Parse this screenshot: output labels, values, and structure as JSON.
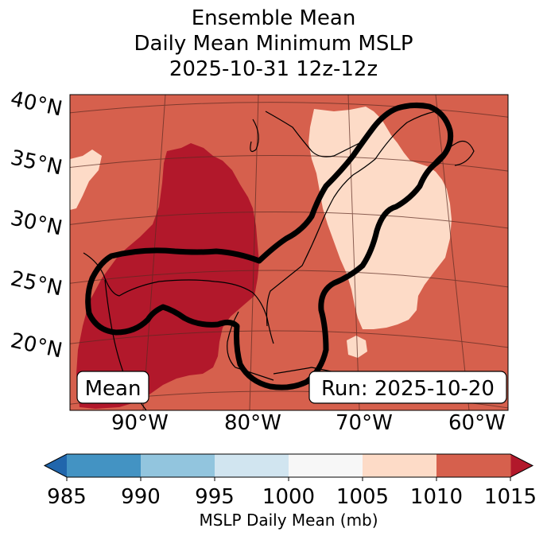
{
  "title": {
    "line1": "Ensemble Mean",
    "line2": "Daily Mean Minimum MSLP",
    "line3": "2025-10-31 12z-12z"
  },
  "lat_labels": [
    "40°N",
    "35°N",
    "30°N",
    "25°N",
    "20°N"
  ],
  "lon_labels": [
    "90°W",
    "80°W",
    "70°W",
    "60°W"
  ],
  "annotations": {
    "left_box": "Mean",
    "right_box": "Run: 2025-10-20"
  },
  "colorbar": {
    "label": "MSLP Daily Mean (mb)",
    "ticks": [
      "985",
      "990",
      "995",
      "1000",
      "1005",
      "1010",
      "1015"
    ],
    "colors": [
      "#4393c3",
      "#92c5de",
      "#d1e5f0",
      "#f7f7f7",
      "#fddbc7",
      "#d6604d",
      "#b2182b"
    ],
    "under_color": "#2166ac",
    "over_color": "#b2182b"
  },
  "map_colors": {
    "c1005": "#fddbc7",
    "c1010": "#d6604d",
    "c1015": "#b2182b"
  }
}
